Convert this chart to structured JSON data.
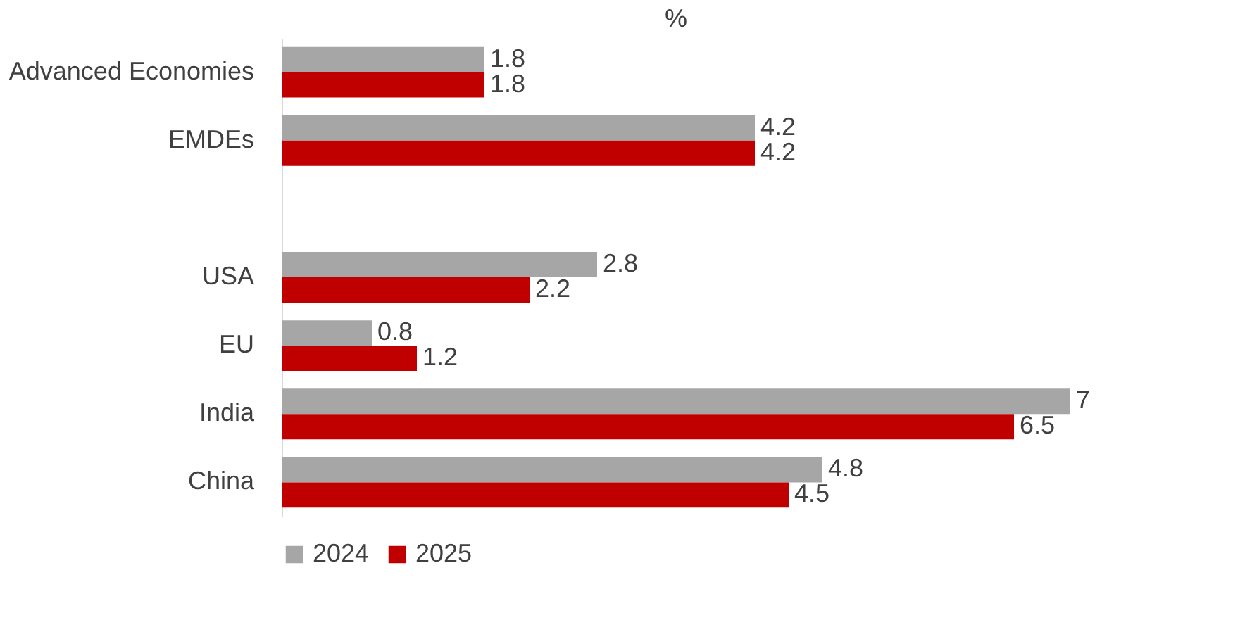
{
  "chart_data": {
    "type": "bar",
    "orientation": "horizontal",
    "title": "%",
    "categories": [
      "Advanced Economies",
      "EMDEs",
      null,
      "USA",
      "EU",
      "India",
      "China"
    ],
    "series": [
      {
        "name": "2024",
        "color": "#a6a6a6",
        "values": [
          1.8,
          4.2,
          null,
          2.8,
          0.8,
          7,
          4.8
        ]
      },
      {
        "name": "2025",
        "color": "#c00000",
        "values": [
          1.8,
          4.2,
          null,
          2.2,
          1.2,
          6.5,
          4.5
        ]
      }
    ],
    "data_labels": true,
    "legend": "bottom",
    "grid": false
  }
}
